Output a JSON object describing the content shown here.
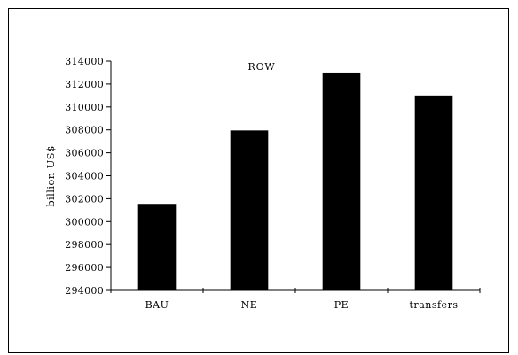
{
  "chart_data": {
    "type": "bar",
    "title": "ROW",
    "xlabel": "",
    "ylabel": "billion US$",
    "categories": [
      "BAU",
      "NE",
      "PE",
      "transfers"
    ],
    "values": [
      301550,
      307950,
      313000,
      311000
    ],
    "ylim": [
      294000,
      314000
    ],
    "yticks": [
      "294000",
      "296000",
      "298000",
      "300000",
      "302000",
      "304000",
      "306000",
      "308000",
      "310000",
      "312000",
      "314000"
    ],
    "grid": false,
    "legend": "none",
    "bar_color": "#000000"
  }
}
